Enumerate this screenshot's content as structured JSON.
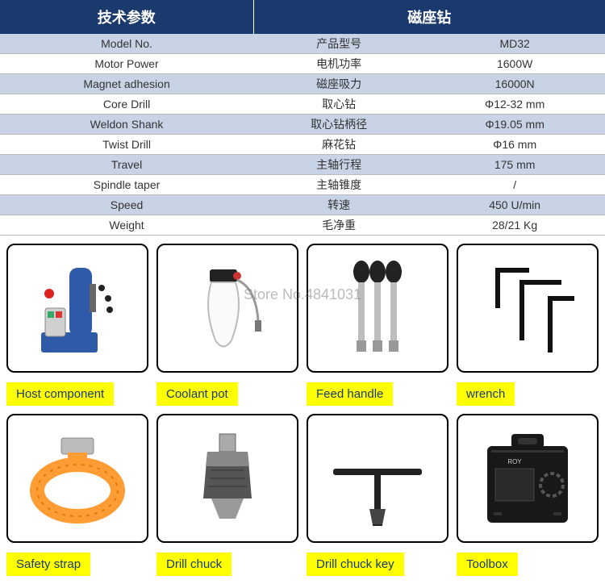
{
  "table": {
    "header_left": "技术参数",
    "header_right": "磁座钻",
    "rows": [
      {
        "en": "Model No.",
        "cn": "产品型号",
        "val": "MD32"
      },
      {
        "en": "Motor Power",
        "cn": "电机功率",
        "val": "1600W"
      },
      {
        "en": "Magnet adhesion",
        "cn": "磁座吸力",
        "val": "16000N"
      },
      {
        "en": "Core Drill",
        "cn": "取心钻",
        "val": "Φ12-32 mm"
      },
      {
        "en": "Weldon Shank",
        "cn": "取心钻柄径",
        "val": "Φ19.05 mm"
      },
      {
        "en": "Twist Drill",
        "cn": "麻花钻",
        "val": "Φ16 mm"
      },
      {
        "en": "Travel",
        "cn": "主轴行程",
        "val": "175 mm"
      },
      {
        "en": "Spindle taper",
        "cn": "主轴锥度",
        "val": "/"
      },
      {
        "en": "Speed",
        "cn": "转速",
        "val": "450 U/min"
      },
      {
        "en": "Weight",
        "cn": "毛净重",
        "val": "28/21 Kg"
      }
    ]
  },
  "watermark": "Store No.4841031",
  "products": [
    {
      "label": "Host component",
      "icon": "host"
    },
    {
      "label": "Coolant pot",
      "icon": "coolant"
    },
    {
      "label": "Feed handle",
      "icon": "feedhandle"
    },
    {
      "label": "wrench",
      "icon": "wrench"
    },
    {
      "label": "Safety strap",
      "icon": "strap"
    },
    {
      "label": "Drill chuck",
      "icon": "chuck"
    },
    {
      "label": "Drill chuck key",
      "icon": "chuckkey"
    },
    {
      "label": "Toolbox",
      "icon": "toolbox"
    }
  ],
  "colors": {
    "header_bg": "#1a3a6e",
    "row_alt": "#c8d4e6",
    "label_bg": "#ffff00",
    "label_text": "#1a3a6e",
    "orange": "#ff9c33",
    "blue": "#2e5aa8"
  }
}
